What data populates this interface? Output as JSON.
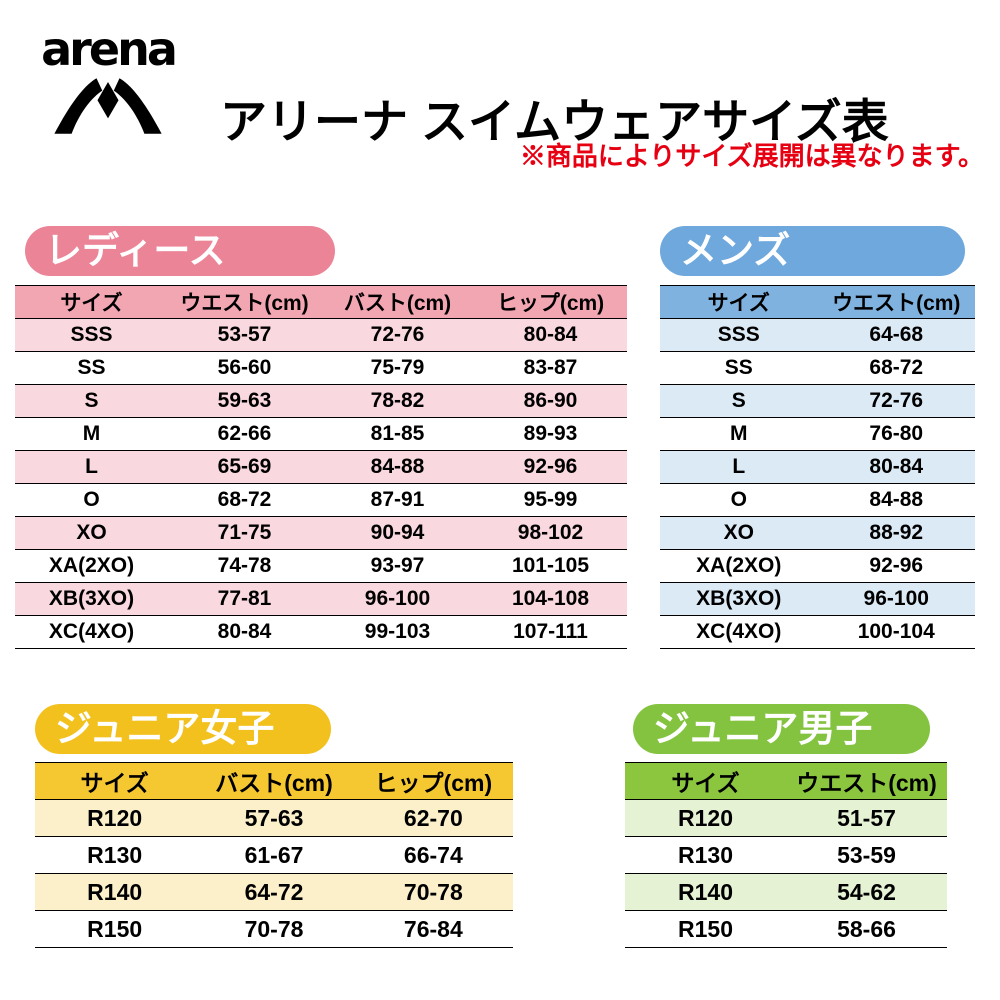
{
  "header": {
    "logo_text": "arena",
    "title": "アリーナ スイムウェアサイズ表",
    "note": "※商品によりサイズ展開は異なります。"
  },
  "colors": {
    "ladies_accent": "#EC8497",
    "mens_accent": "#6FA8DC",
    "junior_girls_accent": "#F2C11E",
    "junior_boys_accent": "#8CC63F",
    "note_red": "#E60012"
  },
  "tables": {
    "ladies": {
      "badge": "レディース",
      "columns": [
        "サイズ",
        "ウエスト(cm)",
        "バスト(cm)",
        "ヒップ(cm)"
      ],
      "rows": [
        [
          "SSS",
          "53-57",
          "72-76",
          "80-84"
        ],
        [
          "SS",
          "56-60",
          "75-79",
          "83-87"
        ],
        [
          "S",
          "59-63",
          "78-82",
          "86-90"
        ],
        [
          "M",
          "62-66",
          "81-85",
          "89-93"
        ],
        [
          "L",
          "65-69",
          "84-88",
          "92-96"
        ],
        [
          "O",
          "68-72",
          "87-91",
          "95-99"
        ],
        [
          "XO",
          "71-75",
          "90-94",
          "98-102"
        ],
        [
          "XA(2XO)",
          "74-78",
          "93-97",
          "101-105"
        ],
        [
          "XB(3XO)",
          "77-81",
          "96-100",
          "104-108"
        ],
        [
          "XC(4XO)",
          "80-84",
          "99-103",
          "107-111"
        ]
      ]
    },
    "mens": {
      "badge": "メンズ",
      "columns": [
        "サイズ",
        "ウエスト(cm)"
      ],
      "rows": [
        [
          "SSS",
          "64-68"
        ],
        [
          "SS",
          "68-72"
        ],
        [
          "S",
          "72-76"
        ],
        [
          "M",
          "76-80"
        ],
        [
          "L",
          "80-84"
        ],
        [
          "O",
          "84-88"
        ],
        [
          "XO",
          "88-92"
        ],
        [
          "XA(2XO)",
          "92-96"
        ],
        [
          "XB(3XO)",
          "96-100"
        ],
        [
          "XC(4XO)",
          "100-104"
        ]
      ]
    },
    "junior_girls": {
      "badge": "ジュニア女子",
      "columns": [
        "サイズ",
        "バスト(cm)",
        "ヒップ(cm)"
      ],
      "rows": [
        [
          "R120",
          "57-63",
          "62-70"
        ],
        [
          "R130",
          "61-67",
          "66-74"
        ],
        [
          "R140",
          "64-72",
          "70-78"
        ],
        [
          "R150",
          "70-78",
          "76-84"
        ]
      ]
    },
    "junior_boys": {
      "badge": "ジュニア男子",
      "columns": [
        "サイズ",
        "ウエスト(cm)"
      ],
      "rows": [
        [
          "R120",
          "51-57"
        ],
        [
          "R130",
          "53-59"
        ],
        [
          "R140",
          "54-62"
        ],
        [
          "R150",
          "58-66"
        ]
      ]
    }
  }
}
